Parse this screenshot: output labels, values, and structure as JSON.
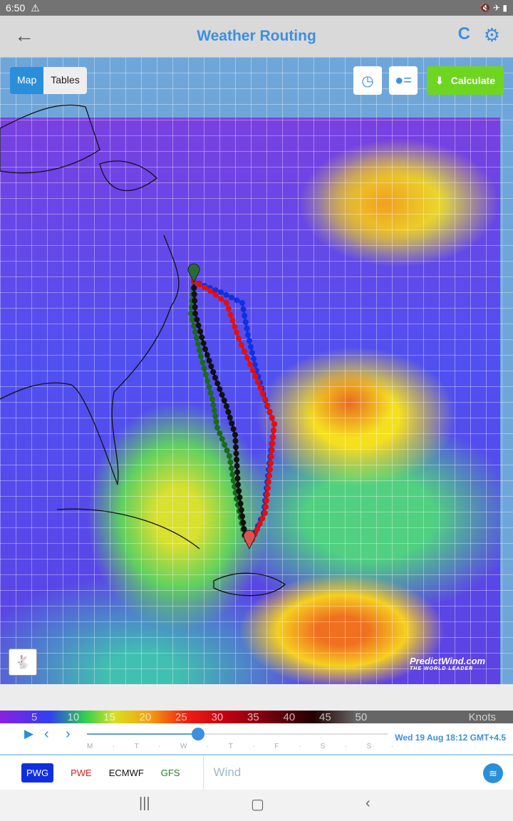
{
  "status": {
    "time": "6:50"
  },
  "header": {
    "title": "Weather Routing"
  },
  "map": {
    "tabs": [
      "Map",
      "Tables"
    ],
    "active_tab": "Map",
    "calculate_label": "Calculate",
    "logo_text": "PredictWind.com",
    "logo_tagline": "THE WORLD LEADER"
  },
  "legend": {
    "values": [
      "5",
      "10",
      "15",
      "20",
      "25",
      "30",
      "35",
      "40",
      "45",
      "50"
    ],
    "unit": "Knots"
  },
  "timeline": {
    "days": [
      "M",
      "·",
      "T",
      "·",
      "W",
      "·",
      "T",
      "·",
      "F",
      "·",
      "S",
      "·",
      "S",
      "·"
    ],
    "current": "Wed 19 Aug 18:12 GMT+4.5",
    "progress": 0.37
  },
  "models": {
    "items": [
      {
        "label": "PWG",
        "color": "#ffffff"
      },
      {
        "label": "PWE",
        "color": "#d02020"
      },
      {
        "label": "ECMWF",
        "color": "#111111"
      },
      {
        "label": "GFS",
        "color": "#208020"
      }
    ],
    "active": "PWG",
    "layer": "Wind"
  },
  "routes": {
    "colors": {
      "PWG": "#1030e0",
      "PWE": "#e01010",
      "ECMWF": "#111111",
      "GFS": "#1a6a1a"
    }
  }
}
